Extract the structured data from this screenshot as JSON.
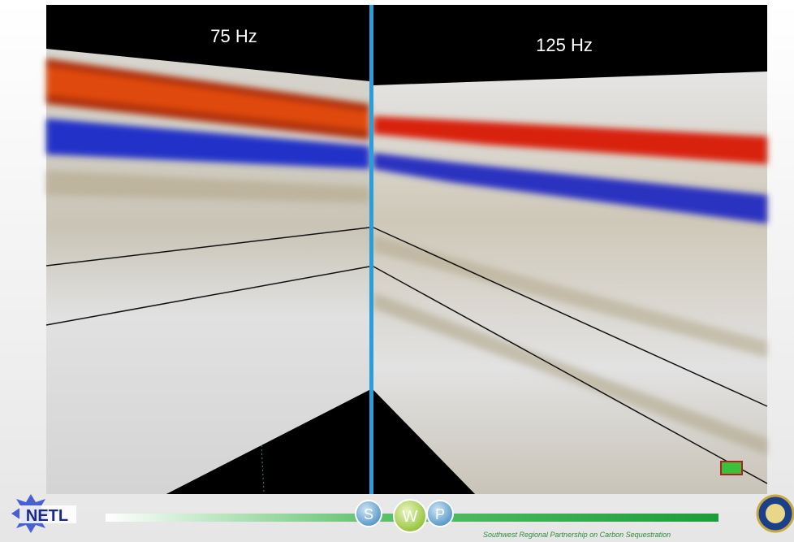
{
  "panels": [
    {
      "label": "75 Hz"
    },
    {
      "label": "125 Hz"
    }
  ],
  "footer": {
    "logo": "NETL",
    "badges": [
      "S",
      "W",
      "P"
    ],
    "tagline": "Southwest Regional Partnership on Carbon Sequestration"
  }
}
